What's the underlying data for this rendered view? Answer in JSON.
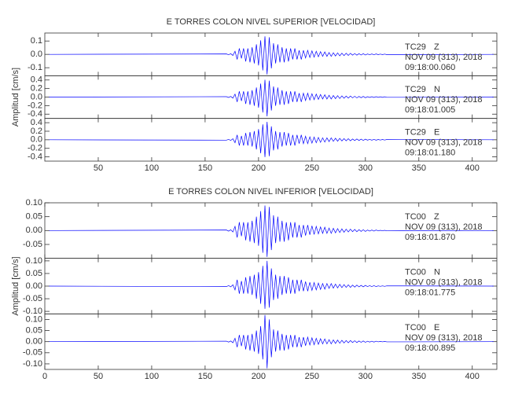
{
  "chart_data": [
    {
      "type": "line",
      "title": "E TORRES COLON NIVEL SUPERIOR [VELOCIDAD]",
      "ylabel": "Amplitud [cm/s]",
      "xlim": [
        0,
        423
      ],
      "xticks": [
        50,
        100,
        150,
        200,
        250,
        300,
        350,
        400
      ],
      "x": [
        4,
        170,
        172,
        174,
        176,
        178,
        180,
        182,
        184,
        186,
        188,
        190,
        192,
        194,
        196,
        198,
        200,
        202,
        204,
        206,
        208,
        210,
        212,
        214,
        216,
        218,
        220,
        222,
        224,
        226,
        228,
        230,
        232,
        234,
        236,
        238,
        240,
        242,
        244,
        246,
        248,
        250,
        252,
        254,
        256,
        258,
        260,
        262,
        264,
        266,
        268,
        270,
        272,
        274,
        276,
        278,
        280,
        282,
        284,
        286,
        288,
        290,
        292,
        294,
        296,
        298,
        300,
        302,
        304,
        306,
        308,
        310,
        312,
        314,
        316,
        318,
        320,
        420
      ],
      "panels": [
        {
          "station": "TC29",
          "component": "Z",
          "date": "NOV 09 (313), 2018",
          "time": "09:18:00.060",
          "color": "#0000ff",
          "ylim": [
            -0.16,
            0.16
          ],
          "yticks": [
            0.1,
            {
              "value": 0,
              "label": "0.0"
            },
            -0.1
          ],
          "values": [
            0,
            0.003,
            -0.003,
            0.005,
            -0.008,
            0.023,
            -0.038,
            0.045,
            -0.03,
            0.045,
            -0.053,
            0.045,
            -0.06,
            0.053,
            -0.068,
            0.075,
            -0.083,
            0.105,
            -0.12,
            0.135,
            -0.15,
            0.128,
            -0.105,
            0.083,
            -0.068,
            0.075,
            -0.06,
            0.053,
            -0.06,
            0.045,
            -0.053,
            0.045,
            -0.038,
            0.045,
            -0.038,
            0.03,
            -0.038,
            0.03,
            -0.027,
            0.03,
            -0.023,
            0.026,
            -0.021,
            0.023,
            -0.018,
            0.02,
            -0.015,
            0.018,
            -0.015,
            0.014,
            -0.015,
            0.012,
            -0.012,
            0.011,
            -0.011,
            0.009,
            -0.009,
            0.008,
            -0.008,
            0.008,
            -0.006,
            0.006,
            -0.006,
            0.005,
            -0.005,
            0.005,
            -0.005,
            0.003,
            -0.003,
            0.003,
            -0.003,
            0.003,
            -0.002,
            0.002,
            -0.002,
            0.002,
            -0.002,
            0
          ]
        },
        {
          "station": "TC29",
          "component": "N",
          "date": "NOV 09 (313), 2018",
          "time": "09:18:01.005",
          "color": "#0000ff",
          "ylim": [
            -0.5,
            0.5
          ],
          "yticks": [
            0.4,
            0.2,
            {
              "value": 0,
              "label": "0.0"
            },
            -0.2,
            -0.4
          ],
          "values": [
            0,
            0.009,
            -0.009,
            0.015,
            -0.024,
            0.069,
            -0.114,
            0.135,
            -0.09,
            0.135,
            -0.159,
            0.135,
            -0.18,
            0.159,
            -0.204,
            0.225,
            -0.249,
            0.315,
            -0.36,
            0.405,
            -0.45,
            0.384,
            -0.315,
            0.249,
            -0.204,
            0.225,
            -0.18,
            0.159,
            -0.18,
            0.135,
            -0.159,
            0.135,
            -0.114,
            0.135,
            -0.114,
            0.09,
            -0.114,
            0.09,
            -0.081,
            0.09,
            -0.069,
            0.078,
            -0.063,
            0.069,
            -0.054,
            0.06,
            -0.045,
            0.054,
            -0.045,
            0.042,
            -0.045,
            0.036,
            -0.036,
            0.033,
            -0.033,
            0.027,
            -0.027,
            0.024,
            -0.024,
            0.024,
            -0.018,
            0.018,
            -0.018,
            0.015,
            -0.015,
            0.015,
            -0.015,
            0.009,
            -0.009,
            0.009,
            -0.009,
            0.009,
            -0.006,
            0.006,
            -0.006,
            0.006,
            -0.006,
            0
          ]
        },
        {
          "station": "TC29",
          "component": "E",
          "date": "NOV 09 (313), 2018",
          "time": "09:18:01.180",
          "color": "#0000ff",
          "ylim": [
            -0.5,
            0.5
          ],
          "yticks": [
            0.4,
            0.2,
            {
              "value": 0,
              "label": "0.0"
            },
            -0.2,
            -0.4
          ],
          "values": [
            0,
            -0.009,
            0.009,
            -0.015,
            0.024,
            -0.069,
            0.114,
            -0.135,
            0.09,
            -0.135,
            0.159,
            -0.135,
            0.18,
            -0.159,
            0.204,
            -0.225,
            0.249,
            -0.315,
            0.36,
            -0.405,
            0.42,
            -0.384,
            0.315,
            -0.249,
            0.204,
            -0.225,
            0.18,
            -0.159,
            0.18,
            -0.135,
            0.159,
            -0.135,
            0.114,
            -0.135,
            0.114,
            -0.09,
            0.114,
            -0.09,
            0.081,
            -0.09,
            0.069,
            -0.078,
            0.063,
            -0.069,
            0.054,
            -0.06,
            0.045,
            -0.054,
            0.045,
            -0.042,
            0.045,
            -0.036,
            0.036,
            -0.033,
            0.033,
            -0.027,
            0.027,
            -0.024,
            0.024,
            -0.024,
            0.018,
            -0.018,
            0.018,
            -0.015,
            0.015,
            -0.015,
            0.015,
            -0.009,
            0.009,
            -0.009,
            0.009,
            -0.009,
            0.006,
            -0.006,
            0.006,
            -0.006,
            0.006,
            0
          ]
        }
      ]
    },
    {
      "type": "line",
      "title": "E TORRES COLON NIVEL INFERIOR [VELOCIDAD]",
      "ylabel": "Amplitud [cm/s]",
      "xlim": [
        0,
        423
      ],
      "xticks": [
        0,
        50,
        100,
        150,
        200,
        250,
        300,
        350,
        400
      ],
      "x": [
        4,
        170,
        172,
        174,
        176,
        178,
        180,
        182,
        184,
        186,
        188,
        190,
        192,
        194,
        196,
        198,
        200,
        202,
        204,
        206,
        208,
        210,
        212,
        214,
        216,
        218,
        220,
        222,
        224,
        226,
        228,
        230,
        232,
        234,
        236,
        238,
        240,
        242,
        244,
        246,
        248,
        250,
        252,
        254,
        256,
        258,
        260,
        262,
        264,
        266,
        268,
        270,
        272,
        274,
        276,
        278,
        280,
        282,
        284,
        286,
        288,
        290,
        292,
        294,
        296,
        298,
        300,
        302,
        304,
        306,
        308,
        310,
        312,
        314,
        316,
        318,
        320,
        420
      ],
      "panels": [
        {
          "station": "TC00",
          "component": "Z",
          "date": "NOV 09 (313), 2018",
          "time": "09:18:01.870",
          "color": "#0000ff",
          "ylim": [
            -0.1,
            0.1
          ],
          "yticks": [
            {
              "value": 0.1,
              "label": "0.10"
            },
            0.05,
            {
              "value": 0,
              "label": "0.00"
            },
            -0.05
          ],
          "values": [
            0,
            0.002,
            -0.002,
            0.003,
            -0.005,
            0.015,
            -0.025,
            0.03,
            -0.02,
            0.03,
            -0.035,
            0.03,
            -0.04,
            0.035,
            -0.045,
            0.05,
            -0.055,
            0.07,
            -0.08,
            0.09,
            -0.095,
            0.085,
            -0.07,
            0.055,
            -0.045,
            0.05,
            -0.04,
            0.035,
            -0.04,
            0.03,
            -0.035,
            0.03,
            -0.025,
            0.03,
            -0.025,
            0.02,
            -0.025,
            0.02,
            -0.018,
            0.02,
            -0.015,
            0.017,
            -0.014,
            0.015,
            -0.012,
            0.013,
            -0.01,
            0.012,
            -0.01,
            0.009,
            -0.01,
            0.008,
            -0.008,
            0.007,
            -0.007,
            0.006,
            -0.006,
            0.005,
            -0.005,
            0.005,
            -0.004,
            0.004,
            -0.004,
            0.003,
            -0.003,
            0.003,
            -0.003,
            0.002,
            -0.002,
            0.002,
            -0.002,
            0.002,
            -0.001,
            0.001,
            -0.001,
            0.001,
            -0.001,
            0
          ]
        },
        {
          "station": "TC00",
          "component": "N",
          "date": "NOV 09 (313), 2018",
          "time": "09:18:01.775",
          "color": "#0000ff",
          "ylim": [
            -0.11,
            0.11
          ],
          "yticks": [
            {
              "value": 0.1,
              "label": "0.10"
            },
            0.05,
            {
              "value": 0,
              "label": "0.00"
            },
            -0.05,
            {
              "value": -0.1,
              "label": "-0.10"
            }
          ],
          "values": [
            0,
            -0.002,
            0.002,
            -0.003,
            0.005,
            -0.015,
            0.025,
            -0.03,
            0.02,
            -0.03,
            0.035,
            -0.03,
            0.04,
            -0.035,
            0.045,
            -0.05,
            0.055,
            -0.07,
            0.08,
            -0.09,
            0.1,
            -0.085,
            0.07,
            -0.055,
            0.045,
            -0.05,
            0.04,
            -0.035,
            0.04,
            -0.03,
            0.035,
            -0.03,
            0.025,
            -0.03,
            0.025,
            -0.02,
            0.025,
            -0.02,
            0.018,
            -0.02,
            0.015,
            -0.017,
            0.014,
            -0.015,
            0.012,
            -0.013,
            0.01,
            -0.012,
            0.01,
            -0.009,
            0.01,
            -0.008,
            0.008,
            -0.007,
            0.007,
            -0.006,
            0.006,
            -0.005,
            0.005,
            -0.005,
            0.004,
            -0.004,
            0.004,
            -0.003,
            0.003,
            -0.003,
            0.003,
            -0.002,
            0.002,
            -0.002,
            0.002,
            -0.002,
            0.001,
            -0.001,
            0.001,
            -0.001,
            0.001,
            0
          ]
        },
        {
          "station": "TC00",
          "component": "E",
          "date": "NOV 09 (313), 2018",
          "time": "09:18:00.895",
          "color": "#0000ff",
          "ylim": [
            -0.125,
            0.125
          ],
          "yticks": [
            {
              "value": 0.1,
              "label": "0.10"
            },
            0.05,
            {
              "value": 0,
              "label": "0.00"
            },
            -0.05,
            {
              "value": -0.1,
              "label": "-0.10"
            }
          ],
          "values": [
            0,
            0.002,
            -0.002,
            0.003,
            -0.005,
            0.015,
            -0.025,
            0.03,
            -0.02,
            0.03,
            -0.035,
            0.03,
            -0.04,
            0.035,
            -0.045,
            0.05,
            -0.055,
            0.07,
            -0.08,
            0.12,
            -0.12,
            0.1,
            -0.07,
            0.055,
            -0.045,
            0.05,
            -0.04,
            0.035,
            -0.04,
            0.03,
            -0.035,
            0.03,
            -0.025,
            0.03,
            -0.025,
            0.02,
            -0.025,
            0.02,
            -0.018,
            0.02,
            -0.015,
            0.017,
            -0.014,
            0.015,
            -0.012,
            0.013,
            -0.01,
            0.012,
            -0.01,
            0.009,
            -0.01,
            0.008,
            -0.008,
            0.007,
            -0.007,
            0.006,
            -0.006,
            0.005,
            -0.005,
            0.005,
            -0.004,
            0.004,
            -0.004,
            0.003,
            -0.003,
            0.003,
            -0.003,
            0.002,
            -0.002,
            0.002,
            -0.002,
            0.002,
            -0.001,
            0.001,
            -0.001,
            0.001,
            -0.001,
            0
          ]
        }
      ]
    }
  ]
}
